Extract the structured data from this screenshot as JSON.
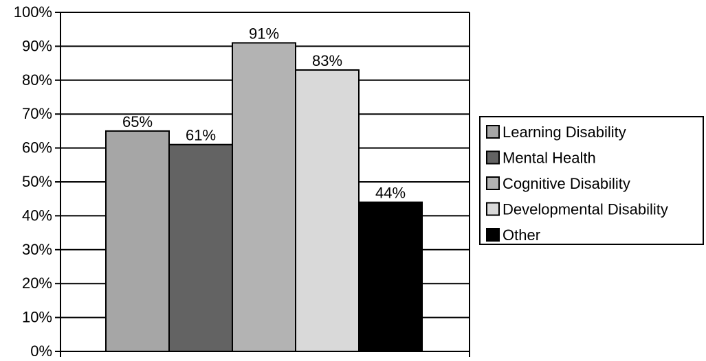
{
  "chart_data": {
    "type": "bar",
    "categories": [
      "Learning Disability",
      "Mental Health",
      "Cognitive Disability",
      "Developmental Disability",
      "Other"
    ],
    "values": [
      65,
      61,
      91,
      83,
      44
    ],
    "value_labels": [
      "65%",
      "61%",
      "91%",
      "83%",
      "44%"
    ],
    "colors": [
      "#a6a6a6",
      "#636363",
      "#b3b3b3",
      "#d9d9d9",
      "#000000"
    ],
    "ylim": [
      0,
      100
    ],
    "yticks": [
      0,
      10,
      20,
      30,
      40,
      50,
      60,
      70,
      80,
      90,
      100
    ],
    "ytick_labels": [
      "0%",
      "10%",
      "20%",
      "30%",
      "40%",
      "50%",
      "60%",
      "70%",
      "80%",
      "90%",
      "100%"
    ],
    "grid": true,
    "legend": {
      "position": "right",
      "entries": [
        "Learning Disability",
        "Mental Health",
        "Cognitive Disability",
        "Developmental Disability",
        "Other"
      ]
    }
  }
}
